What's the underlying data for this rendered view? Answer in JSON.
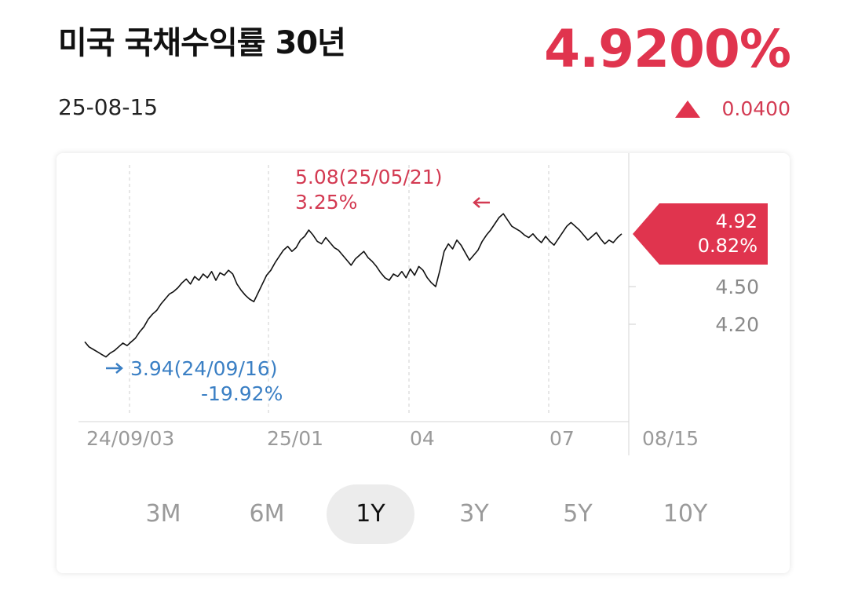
{
  "header": {
    "title": "미국 국채수익률 30년",
    "date": "25-08-15",
    "price": "4.9200%",
    "change": "0.0400",
    "change_direction": "up-triangle-icon",
    "accent_color": "#e0344e"
  },
  "chart_data": {
    "type": "line",
    "x_tick_labels": [
      "24/09/03",
      "25/01",
      "04",
      "07",
      "08/15"
    ],
    "y_tick_labels": [
      "4.50",
      "4.20"
    ],
    "current_badge": {
      "value": "4.92",
      "percent": "0.82%"
    },
    "high_annotation": {
      "label": "5.08(25/05/21)",
      "percent": "3.25%",
      "color": "#d33a52"
    },
    "low_annotation": {
      "label": "3.94(24/09/16)",
      "percent": "-19.92%",
      "color": "#3a7fc4"
    },
    "series": [
      {
        "values": [
          4.06,
          4.02,
          4.0,
          3.98,
          3.96,
          3.94,
          3.97,
          3.99,
          4.02,
          4.05,
          4.03,
          4.06,
          4.09,
          4.14,
          4.18,
          4.24,
          4.28,
          4.31,
          4.36,
          4.4,
          4.44,
          4.46,
          4.49,
          4.53,
          4.56,
          4.52,
          4.58,
          4.55,
          4.6,
          4.57,
          4.62,
          4.55,
          4.61,
          4.59,
          4.63,
          4.6,
          4.52,
          4.47,
          4.43,
          4.4,
          4.38,
          4.45,
          4.52,
          4.59,
          4.63,
          4.69,
          4.74,
          4.79,
          4.82,
          4.78,
          4.81,
          4.87,
          4.9,
          4.95,
          4.91,
          4.86,
          4.84,
          4.89,
          4.85,
          4.81,
          4.79,
          4.75,
          4.71,
          4.67,
          4.72,
          4.75,
          4.78,
          4.73,
          4.7,
          4.66,
          4.61,
          4.57,
          4.55,
          4.6,
          4.58,
          4.62,
          4.57,
          4.64,
          4.59,
          4.66,
          4.63,
          4.57,
          4.53,
          4.5,
          4.63,
          4.78,
          4.84,
          4.8,
          4.87,
          4.83,
          4.77,
          4.71,
          4.75,
          4.79,
          4.86,
          4.91,
          4.95,
          5.0,
          5.05,
          5.08,
          5.03,
          4.98,
          4.96,
          4.94,
          4.91,
          4.89,
          4.92,
          4.88,
          4.85,
          4.9,
          4.86,
          4.83,
          4.88,
          4.93,
          4.98,
          5.01,
          4.98,
          4.95,
          4.91,
          4.87,
          4.9,
          4.93,
          4.88,
          4.84,
          4.87,
          4.85,
          4.89,
          4.92
        ]
      }
    ]
  },
  "periods": {
    "active": "1Y",
    "items": [
      {
        "label": "3M"
      },
      {
        "label": "6M"
      },
      {
        "label": "1Y"
      },
      {
        "label": "3Y"
      },
      {
        "label": "5Y"
      },
      {
        "label": "10Y"
      }
    ]
  }
}
